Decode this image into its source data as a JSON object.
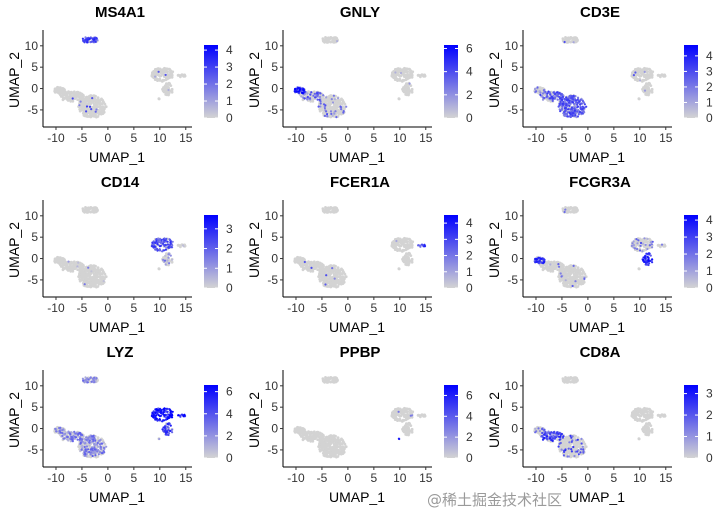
{
  "colors": {
    "low": "#d3d3d3",
    "high": "#0000ff",
    "axis": "#000000"
  },
  "clusters": [
    {
      "id": "B",
      "center": [
        -3.5,
        11.4
      ],
      "spread": [
        1.7,
        0.7
      ],
      "n": 60
    },
    {
      "id": "blob",
      "center": [
        -3.0,
        -4.2
      ],
      "spread": [
        2.7,
        2.6
      ],
      "n": 260
    },
    {
      "id": "arm",
      "center": [
        -7.0,
        -1.8
      ],
      "spread": [
        2.3,
        1.2
      ],
      "n": 100
    },
    {
      "id": "NK",
      "center": [
        -9.3,
        -0.5
      ],
      "spread": [
        1.0,
        0.9
      ],
      "n": 50
    },
    {
      "id": "CD14mono",
      "center": [
        10.5,
        3.3
      ],
      "spread": [
        2.2,
        1.6
      ],
      "n": 110
    },
    {
      "id": "FCGR3Amono",
      "center": [
        11.5,
        -0.3
      ],
      "spread": [
        1.0,
        1.6
      ],
      "n": 45
    },
    {
      "id": "DC",
      "center": [
        14.2,
        3.0
      ],
      "spread": [
        0.9,
        0.3
      ],
      "n": 12
    },
    {
      "id": "Platelet",
      "center": [
        9.8,
        -2.3
      ],
      "spread": [
        0.2,
        0.2
      ],
      "n": 2
    }
  ],
  "chart_data": [
    {
      "type": "scatter",
      "title": "MS4A1",
      "xlabel": "UMAP_1",
      "ylabel": "UMAP_2",
      "xlim": [
        -12.5,
        16.2
      ],
      "ylim": [
        -9,
        13.7
      ],
      "xticks": [
        -10,
        -5,
        0,
        5,
        10,
        15
      ],
      "yticks": [
        -5,
        0,
        5,
        10
      ],
      "legend_max": 4.3,
      "legend_ticks": [
        0,
        1,
        2,
        3,
        4
      ],
      "legend": "right",
      "expression": {
        "B": [
          0.95,
          0.6
        ],
        "blob": [
          0.03,
          0.5
        ],
        "arm": [
          0.02,
          0.5
        ],
        "NK": [
          0.02,
          0.5
        ],
        "CD14mono": [
          0.02,
          0.4
        ],
        "FCGR3Amono": [
          0.02,
          0.4
        ],
        "DC": [
          0,
          0
        ],
        "Platelet": [
          0,
          0
        ]
      }
    },
    {
      "type": "scatter",
      "title": "GNLY",
      "xlabel": "UMAP_1",
      "ylabel": "UMAP_2",
      "xlim": [
        -12.5,
        16.2
      ],
      "ylim": [
        -9,
        13.7
      ],
      "xticks": [
        -10,
        -5,
        0,
        5,
        10,
        15
      ],
      "yticks": [
        -5,
        0,
        5,
        10
      ],
      "legend_max": 6.3,
      "legend_ticks": [
        0,
        2,
        4,
        6
      ],
      "legend": "right",
      "expression": {
        "B": [
          0.02,
          0.3
        ],
        "blob": [
          0.1,
          0.4
        ],
        "arm": [
          0.35,
          0.45
        ],
        "NK": [
          0.95,
          0.75
        ],
        "CD14mono": [
          0.03,
          0.3
        ],
        "FCGR3Amono": [
          0.03,
          0.3
        ],
        "DC": [
          0,
          0
        ],
        "Platelet": [
          0,
          0
        ]
      }
    },
    {
      "type": "scatter",
      "title": "CD3E",
      "xlabel": "UMAP_1",
      "ylabel": "UMAP_2",
      "xlim": [
        -12.5,
        16.2
      ],
      "ylim": [
        -9,
        13.7
      ],
      "xticks": [
        -10,
        -5,
        0,
        5,
        10,
        15
      ],
      "yticks": [
        -5,
        0,
        5,
        10
      ],
      "legend_max": 4.7,
      "legend_ticks": [
        0,
        1,
        2,
        3,
        4
      ],
      "legend": "right",
      "expression": {
        "B": [
          0.05,
          0.4
        ],
        "blob": [
          0.85,
          0.5
        ],
        "arm": [
          0.75,
          0.5
        ],
        "NK": [
          0.2,
          0.3
        ],
        "CD14mono": [
          0.05,
          0.4
        ],
        "FCGR3Amono": [
          0.03,
          0.4
        ],
        "DC": [
          0,
          0
        ],
        "Platelet": [
          0,
          0
        ]
      }
    },
    {
      "type": "scatter",
      "title": "CD14",
      "xlabel": "UMAP_1",
      "ylabel": "UMAP_2",
      "xlim": [
        -12.5,
        16.2
      ],
      "ylim": [
        -9,
        13.7
      ],
      "xticks": [
        -10,
        -5,
        0,
        5,
        10,
        15
      ],
      "yticks": [
        -5,
        0,
        5,
        10
      ],
      "legend_max": 3.7,
      "legend_ticks": [
        0,
        1,
        2,
        3
      ],
      "legend": "right",
      "expression": {
        "B": [
          0,
          0
        ],
        "blob": [
          0.01,
          0.3
        ],
        "arm": [
          0.01,
          0.3
        ],
        "NK": [
          0,
          0
        ],
        "CD14mono": [
          0.8,
          0.55
        ],
        "FCGR3Amono": [
          0.3,
          0.3
        ],
        "DC": [
          0.2,
          0.3
        ],
        "Platelet": [
          0,
          0
        ]
      }
    },
    {
      "type": "scatter",
      "title": "FCER1A",
      "xlabel": "UMAP_1",
      "ylabel": "UMAP_2",
      "xlim": [
        -12.5,
        16.2
      ],
      "ylim": [
        -9,
        13.7
      ],
      "xticks": [
        -10,
        -5,
        0,
        5,
        10,
        15
      ],
      "yticks": [
        -5,
        0,
        5,
        10
      ],
      "legend_max": 4.5,
      "legend_ticks": [
        0,
        1,
        2,
        3,
        4
      ],
      "legend": "right",
      "expression": {
        "B": [
          0,
          0
        ],
        "blob": [
          0.02,
          0.5
        ],
        "arm": [
          0.01,
          0.4
        ],
        "NK": [
          0,
          0
        ],
        "CD14mono": [
          0.01,
          0.4
        ],
        "FCGR3Amono": [
          0,
          0
        ],
        "DC": [
          0.95,
          0.65
        ],
        "Platelet": [
          0,
          0
        ]
      }
    },
    {
      "type": "scatter",
      "title": "FCGR3A",
      "xlabel": "UMAP_1",
      "ylabel": "UMAP_2",
      "xlim": [
        -12.5,
        16.2
      ],
      "ylim": [
        -9,
        13.7
      ],
      "xticks": [
        -10,
        -5,
        0,
        5,
        10,
        15
      ],
      "yticks": [
        -5,
        0,
        5,
        10
      ],
      "legend_max": 4.3,
      "legend_ticks": [
        0,
        1,
        2,
        3,
        4
      ],
      "legend": "right",
      "expression": {
        "B": [
          0.02,
          0.4
        ],
        "blob": [
          0.05,
          0.4
        ],
        "arm": [
          0.05,
          0.4
        ],
        "NK": [
          0.9,
          0.65
        ],
        "CD14mono": [
          0.2,
          0.4
        ],
        "FCGR3Amono": [
          0.95,
          0.7
        ],
        "DC": [
          0.1,
          0.3
        ],
        "Platelet": [
          0,
          0
        ]
      }
    },
    {
      "type": "scatter",
      "title": "LYZ",
      "xlabel": "UMAP_1",
      "ylabel": "UMAP_2",
      "xlim": [
        -12.5,
        16.2
      ],
      "ylim": [
        -9,
        13.7
      ],
      "xticks": [
        -10,
        -5,
        0,
        5,
        10,
        15
      ],
      "yticks": [
        -5,
        0,
        5,
        10
      ],
      "legend_max": 6.6,
      "legend_ticks": [
        0,
        2,
        4,
        6
      ],
      "legend": "right",
      "expression": {
        "B": [
          0.6,
          0.3
        ],
        "blob": [
          0.6,
          0.3
        ],
        "arm": [
          0.6,
          0.3
        ],
        "NK": [
          0.4,
          0.3
        ],
        "CD14mono": [
          1,
          0.8
        ],
        "FCGR3Amono": [
          0.9,
          0.6
        ],
        "DC": [
          1,
          0.8
        ],
        "Platelet": [
          0.5,
          0.3
        ]
      }
    },
    {
      "type": "scatter",
      "title": "PPBP",
      "xlabel": "UMAP_1",
      "ylabel": "UMAP_2",
      "xlim": [
        -12.5,
        16.2
      ],
      "ylim": [
        -9,
        13.7
      ],
      "xticks": [
        -10,
        -5,
        0,
        5,
        10,
        15
      ],
      "yticks": [
        -5,
        0,
        5,
        10
      ],
      "legend_max": 7.0,
      "legend_ticks": [
        0,
        2,
        4,
        6
      ],
      "legend": "right",
      "expression": {
        "B": [
          0,
          0
        ],
        "blob": [
          0,
          0
        ],
        "arm": [
          0,
          0
        ],
        "NK": [
          0,
          0
        ],
        "CD14mono": [
          0.03,
          0.5
        ],
        "FCGR3Amono": [
          0,
          0
        ],
        "DC": [
          0,
          0
        ],
        "Platelet": [
          1,
          0.9
        ]
      }
    },
    {
      "type": "scatter",
      "title": "CD8A",
      "xlabel": "UMAP_1",
      "ylabel": "UMAP_2",
      "xlim": [
        -12.5,
        16.2
      ],
      "ylim": [
        -9,
        13.7
      ],
      "xticks": [
        -10,
        -5,
        0,
        5,
        10,
        15
      ],
      "yticks": [
        -5,
        0,
        5,
        10
      ],
      "legend_max": 3.4,
      "legend_ticks": [
        0,
        1,
        2,
        3
      ],
      "legend": "right",
      "expression": {
        "B": [
          0,
          0
        ],
        "blob": [
          0.15,
          0.55
        ],
        "arm": [
          0.7,
          0.6
        ],
        "NK": [
          0.2,
          0.4
        ],
        "CD14mono": [
          0,
          0
        ],
        "FCGR3Amono": [
          0,
          0
        ],
        "DC": [
          0,
          0
        ],
        "Platelet": [
          0,
          0
        ]
      }
    }
  ],
  "watermark": "@稀土掘金技术社区"
}
